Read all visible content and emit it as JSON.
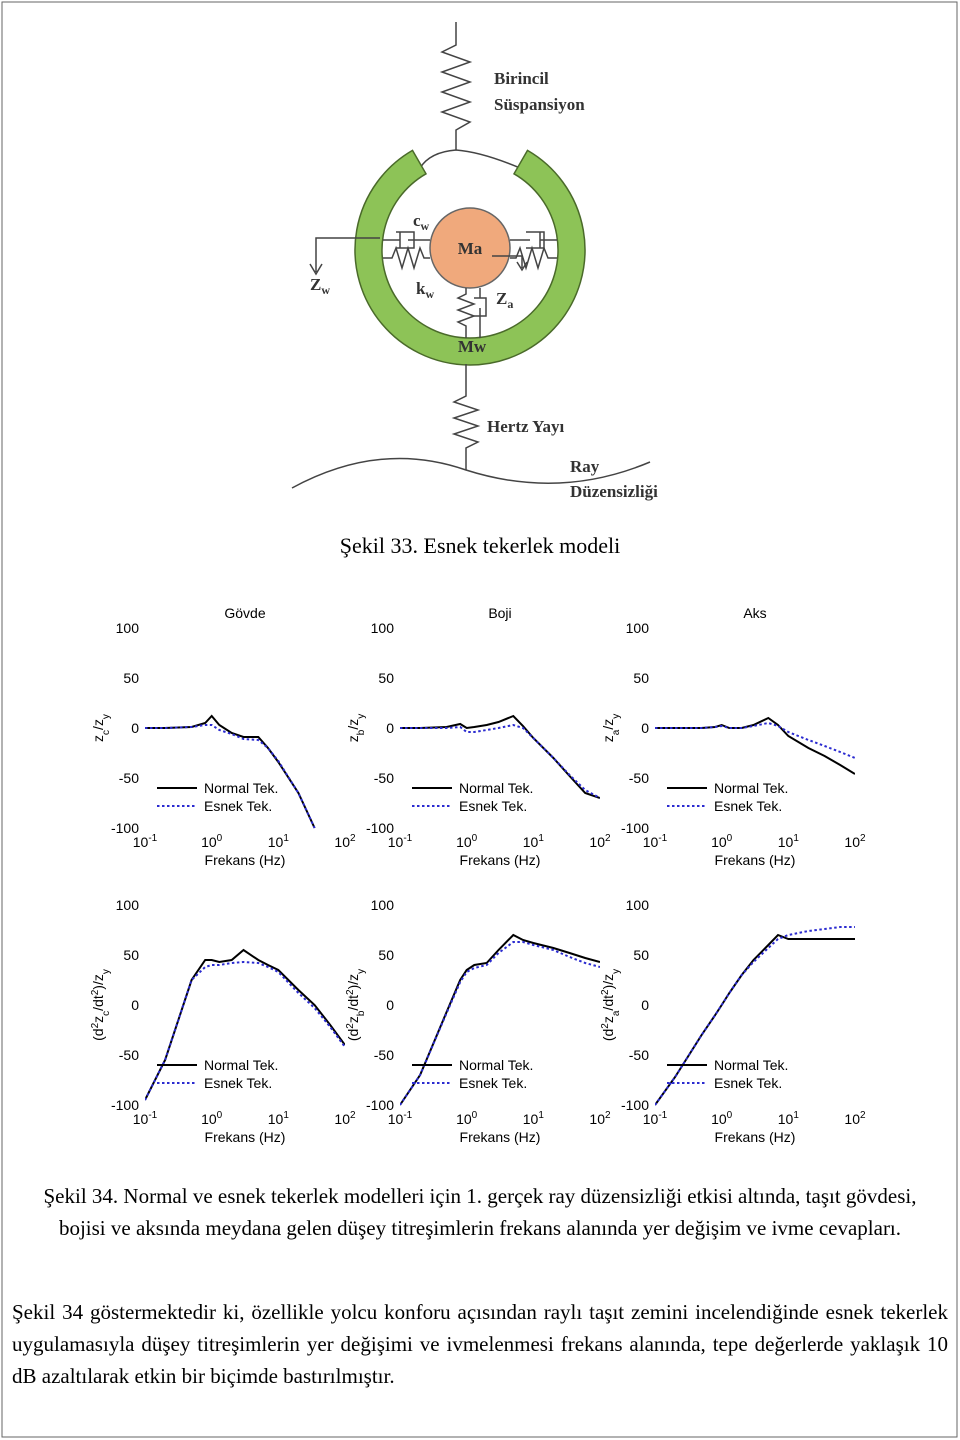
{
  "figure_33": {
    "labels": {
      "birincil": "Birincil",
      "suspansiyon": "Süspansiyon",
      "cw": {
        "main": "c",
        "sub": "w"
      },
      "ma": "Ma",
      "kw": {
        "main": "k",
        "sub": "w"
      },
      "za": {
        "main": "Z",
        "sub": "a"
      },
      "zw": {
        "main": "Z",
        "sub": "w"
      },
      "mw": "Mw",
      "hertz": "Hertz Yayı",
      "ray": "Ray",
      "duzensizligi": "Düzensizliği"
    },
    "caption": "Şekil 33. Esnek tekerlek modeli"
  },
  "chart_data": [
    {
      "type": "line",
      "title": "Gövde",
      "ylabel": [
        {
          "text": "z"
        },
        {
          "text": "c",
          "style": "sub"
        },
        {
          "text": "/z"
        },
        {
          "text": "y",
          "style": "sub"
        }
      ],
      "xlabel": "Frekans (Hz)",
      "xscale": "log",
      "xlim": [
        0.1,
        100
      ],
      "ylim": [
        -100,
        100
      ],
      "xticks": [
        {
          "value": 0.1,
          "label": "10-1"
        },
        {
          "value": 1,
          "label": "100"
        },
        {
          "value": 10,
          "label": "101"
        },
        {
          "value": 100,
          "label": "102"
        }
      ],
      "yticks": [
        -100,
        -50,
        0,
        50,
        100
      ],
      "grid": false,
      "legend": "lower left",
      "x": [
        0.1,
        0.2,
        0.5,
        0.8,
        1,
        1.3,
        2,
        3,
        5,
        7,
        10,
        20,
        35,
        60,
        100
      ],
      "series": [
        {
          "name": "Normal Tek.",
          "color": "#000000",
          "dash": "solid",
          "values": [
            0,
            0,
            1,
            5,
            12,
            3,
            -5,
            -9,
            -9,
            -20,
            -34,
            -65,
            -100,
            null,
            null
          ]
        },
        {
          "name": "Esnek Tek.",
          "color": "#2b2bd0",
          "dash": "dotted",
          "values": [
            0,
            0,
            1,
            3,
            3,
            -2,
            -6,
            -11,
            -12,
            -20,
            -33,
            -65,
            -100,
            null,
            null
          ]
        }
      ]
    },
    {
      "type": "line",
      "title": "Boji",
      "ylabel": [
        {
          "text": "z"
        },
        {
          "text": "b",
          "style": "sub"
        },
        {
          "text": "/z"
        },
        {
          "text": "y",
          "style": "sub"
        }
      ],
      "xlabel": "Frekans (Hz)",
      "xscale": "log",
      "xlim": [
        0.1,
        100
      ],
      "ylim": [
        -100,
        100
      ],
      "xticks": [
        {
          "value": 0.1,
          "label": "10-1"
        },
        {
          "value": 1,
          "label": "100"
        },
        {
          "value": 10,
          "label": "101"
        },
        {
          "value": 100,
          "label": "102"
        }
      ],
      "yticks": [
        -100,
        -50,
        0,
        50,
        100
      ],
      "grid": false,
      "legend": "lower left",
      "x": [
        0.1,
        0.2,
        0.5,
        0.8,
        1,
        1.3,
        2,
        3,
        5,
        7,
        10,
        20,
        35,
        60,
        100
      ],
      "series": [
        {
          "name": "Normal Tek.",
          "color": "#000000",
          "dash": "solid",
          "values": [
            0,
            0,
            1,
            4,
            0,
            1,
            3,
            6,
            12,
            2,
            -10,
            -30,
            -48,
            -65,
            -70
          ]
        },
        {
          "name": "Esnek Tek.",
          "color": "#2b2bd0",
          "dash": "dotted",
          "values": [
            0,
            0,
            0,
            1,
            -4,
            -4,
            -2,
            0,
            3,
            0,
            -10,
            -30,
            -47,
            -62,
            -70
          ]
        }
      ]
    },
    {
      "type": "line",
      "title": "Aks",
      "ylabel": [
        {
          "text": "z"
        },
        {
          "text": "a",
          "style": "sub"
        },
        {
          "text": "/z"
        },
        {
          "text": "y",
          "style": "sub"
        }
      ],
      "xlabel": "Frekans (Hz)",
      "xscale": "log",
      "xlim": [
        0.1,
        100
      ],
      "ylim": [
        -100,
        100
      ],
      "xticks": [
        {
          "value": 0.1,
          "label": "10-1"
        },
        {
          "value": 1,
          "label": "100"
        },
        {
          "value": 10,
          "label": "101"
        },
        {
          "value": 100,
          "label": "102"
        }
      ],
      "yticks": [
        -100,
        -50,
        0,
        50,
        100
      ],
      "grid": false,
      "legend": "lower left",
      "x": [
        0.1,
        0.2,
        0.5,
        0.8,
        1,
        1.3,
        2,
        3,
        5,
        7,
        10,
        20,
        35,
        60,
        100
      ],
      "series": [
        {
          "name": "Normal Tek.",
          "color": "#000000",
          "dash": "solid",
          "values": [
            0,
            0,
            0,
            1,
            3,
            0,
            0,
            3,
            10,
            3,
            -8,
            -20,
            -28,
            -37,
            -46
          ]
        },
        {
          "name": "Esnek Tek.",
          "color": "#2b2bd0",
          "dash": "dotted",
          "values": [
            0,
            0,
            0,
            1,
            2,
            0,
            0,
            2,
            5,
            2,
            -4,
            -12,
            -18,
            -24,
            -30
          ]
        }
      ]
    },
    {
      "type": "line",
      "ylabel": [
        {
          "text": "(d"
        },
        {
          "text": "2",
          "style": "sup"
        },
        {
          "text": "z"
        },
        {
          "text": "c",
          "style": "sub"
        },
        {
          "text": "/dt"
        },
        {
          "text": "2",
          "style": "sup"
        },
        {
          "text": ")/z"
        },
        {
          "text": "y",
          "style": "sub"
        }
      ],
      "xlabel": "Frekans (Hz)",
      "xscale": "log",
      "xlim": [
        0.1,
        100
      ],
      "ylim": [
        -100,
        100
      ],
      "xticks": [
        {
          "value": 0.1,
          "label": "10-1"
        },
        {
          "value": 1,
          "label": "100"
        },
        {
          "value": 10,
          "label": "101"
        },
        {
          "value": 100,
          "label": "102"
        }
      ],
      "yticks": [
        -100,
        -50,
        0,
        50,
        100
      ],
      "grid": false,
      "legend": "lower left",
      "x": [
        0.1,
        0.2,
        0.5,
        0.8,
        1,
        1.3,
        2,
        3,
        5,
        7,
        10,
        20,
        35,
        60,
        100
      ],
      "series": [
        {
          "name": "Normal Tek.",
          "color": "#000000",
          "dash": "solid",
          "values": [
            -95,
            -55,
            25,
            45,
            45,
            43,
            45,
            55,
            45,
            40,
            35,
            15,
            0,
            -20,
            -40
          ]
        },
        {
          "name": "Esnek Tek.",
          "color": "#2b2bd0",
          "dash": "dotted",
          "values": [
            -95,
            -55,
            25,
            38,
            40,
            40,
            42,
            43,
            42,
            38,
            33,
            12,
            -3,
            -22,
            -42
          ]
        }
      ]
    },
    {
      "type": "line",
      "ylabel": [
        {
          "text": "(d"
        },
        {
          "text": "2",
          "style": "sup"
        },
        {
          "text": "z"
        },
        {
          "text": "b",
          "style": "sub"
        },
        {
          "text": "/dt"
        },
        {
          "text": "2",
          "style": "sup"
        },
        {
          "text": ")/z"
        },
        {
          "text": "y",
          "style": "sub"
        }
      ],
      "xlabel": "Frekans (Hz)",
      "xscale": "log",
      "xlim": [
        0.1,
        100
      ],
      "ylim": [
        -100,
        100
      ],
      "xticks": [
        {
          "value": 0.1,
          "label": "10-1"
        },
        {
          "value": 1,
          "label": "100"
        },
        {
          "value": 10,
          "label": "101"
        },
        {
          "value": 100,
          "label": "102"
        }
      ],
      "yticks": [
        -100,
        -50,
        0,
        50,
        100
      ],
      "grid": false,
      "legend": "lower left",
      "x": [
        0.1,
        0.2,
        0.5,
        0.8,
        1,
        1.3,
        2,
        3,
        5,
        7,
        10,
        20,
        35,
        60,
        100
      ],
      "series": [
        {
          "name": "Normal Tek.",
          "color": "#000000",
          "dash": "solid",
          "values": [
            -100,
            -70,
            -7,
            25,
            35,
            40,
            42,
            55,
            70,
            65,
            62,
            57,
            52,
            47,
            43
          ]
        },
        {
          "name": "Esnek Tek.",
          "color": "#2b2bd0",
          "dash": "dotted",
          "values": [
            -100,
            -70,
            -8,
            23,
            33,
            37,
            40,
            52,
            63,
            63,
            60,
            55,
            48,
            42,
            38
          ]
        }
      ]
    },
    {
      "type": "line",
      "ylabel": [
        {
          "text": "(d"
        },
        {
          "text": "2",
          "style": "sup"
        },
        {
          "text": "z"
        },
        {
          "text": "a",
          "style": "sub"
        },
        {
          "text": "/dt"
        },
        {
          "text": "2",
          "style": "sup"
        },
        {
          "text": ")/z"
        },
        {
          "text": "y",
          "style": "sub"
        }
      ],
      "xlabel": "Frekans (Hz)",
      "xscale": "log",
      "xlim": [
        0.1,
        100
      ],
      "ylim": [
        -100,
        100
      ],
      "xticks": [
        {
          "value": 0.1,
          "label": "10-1"
        },
        {
          "value": 1,
          "label": "100"
        },
        {
          "value": 10,
          "label": "101"
        },
        {
          "value": 100,
          "label": "102"
        }
      ],
      "yticks": [
        -100,
        -50,
        0,
        50,
        100
      ],
      "grid": false,
      "legend": "lower left",
      "x": [
        0.1,
        0.2,
        0.5,
        0.8,
        1,
        1.3,
        2,
        3,
        5,
        7,
        10,
        20,
        35,
        60,
        100
      ],
      "series": [
        {
          "name": "Normal Tek.",
          "color": "#000000",
          "dash": "solid",
          "values": [
            -100,
            -72,
            -30,
            -10,
            0,
            12,
            30,
            45,
            60,
            70,
            66,
            66,
            66,
            66,
            66
          ]
        },
        {
          "name": "Esnek Tek.",
          "color": "#2b2bd0",
          "dash": "dotted",
          "values": [
            -100,
            -72,
            -30,
            -10,
            0,
            12,
            30,
            43,
            57,
            66,
            70,
            74,
            76,
            78,
            78
          ]
        }
      ]
    }
  ],
  "figure_34_caption": "Şekil 34. Normal ve esnek tekerlek modelleri için 1. gerçek ray düzensizliği etkisi altında, taşıt gövdesi, bojisi ve aksında meydana gelen düşey titreşimlerin frekans alanında yer değişim ve ivme cevapları.",
  "paragraph": "Şekil 34 göstermektedir ki, özellikle yolcu konforu açısından raylı taşıt zemini incelendiğinde esnek tekerlek uygulamasıyla düşey titreşimlerin yer değişimi ve ivmelenmesi frekans alanında, tepe değerlerde yaklaşık 10 dB azaltılarak etkin bir biçimde bastırılmıştır."
}
